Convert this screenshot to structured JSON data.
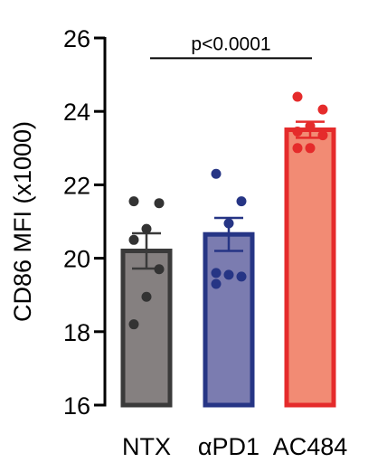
{
  "chart_data": {
    "type": "bar",
    "title": "",
    "xlabel": "",
    "ylabel": "CD86 MFI (x1000)",
    "ylim": [
      16,
      26
    ],
    "yticks": [
      16,
      18,
      20,
      22,
      24,
      26
    ],
    "grid": false,
    "legend": "none",
    "categories": [
      "NTX",
      "αPD1",
      "AC484"
    ],
    "values": [
      20.2,
      20.65,
      23.5
    ],
    "sem": [
      0.48,
      0.45,
      0.22
    ],
    "points": [
      [
        21.55,
        21.5,
        20.8,
        20.5,
        19.7,
        18.95,
        18.2
      ],
      [
        22.3,
        21.55,
        20.95,
        19.6,
        19.5,
        19.55,
        19.3
      ],
      [
        24.4,
        24.05,
        23.6,
        23.45,
        23.35,
        23.0,
        23.0
      ]
    ],
    "fill_colors": [
      "#858080",
      "#7b7cb0",
      "#f28b74"
    ],
    "edge_colors": [
      "#3a3a3a",
      "#263585",
      "#e52b2b"
    ],
    "point_colors": [
      "#333333",
      "#263585",
      "#e52b2b"
    ],
    "annotation": {
      "text": "p<0.0001",
      "from_category": 0,
      "to_category": 2,
      "y": 25.45
    }
  }
}
